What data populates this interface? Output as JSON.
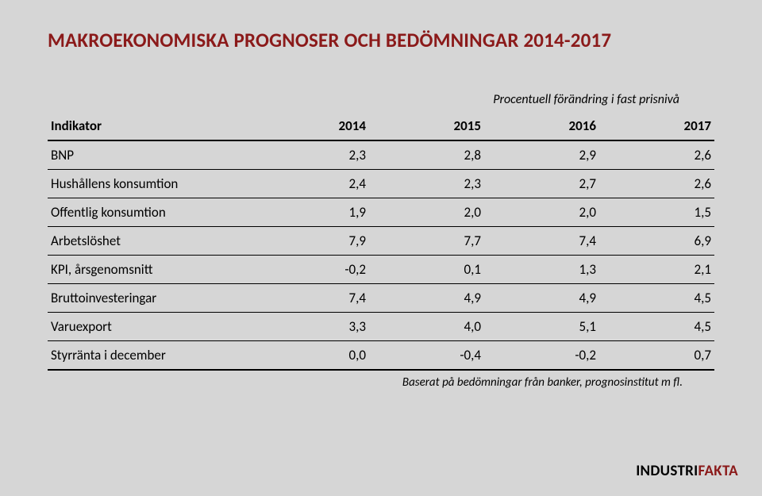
{
  "title": "MAKROEKONOMISKA PROGNOSER OCH BEDÖMNINGAR 2014-2017",
  "title_color": "#8b1a1a",
  "background_color": "#d6d6d6",
  "subtitle": "Procentuell förändring i fast prisnivå",
  "table": {
    "header_label": "Indikator",
    "years": [
      "2014",
      "2015",
      "2016",
      "2017"
    ],
    "rows": [
      {
        "label": "BNP",
        "vals": [
          "2,3",
          "2,8",
          "2,9",
          "2,6"
        ]
      },
      {
        "label": "Hushållens konsumtion",
        "vals": [
          "2,4",
          "2,3",
          "2,7",
          "2,6"
        ]
      },
      {
        "label": "Offentlig konsumtion",
        "vals": [
          "1,9",
          "2,0",
          "2,0",
          "1,5"
        ]
      },
      {
        "label": "Arbetslöshet",
        "vals": [
          "7,9",
          "7,7",
          "7,4",
          "6,9"
        ]
      },
      {
        "label": "KPI, årsgenomsnitt",
        "vals": [
          "-0,2",
          "0,1",
          "1,3",
          "2,1"
        ]
      },
      {
        "label": "Bruttoinvesteringar",
        "vals": [
          "7,4",
          "4,9",
          "4,9",
          "4,5"
        ]
      },
      {
        "label": "Varuexport",
        "vals": [
          "3,3",
          "4,0",
          "5,1",
          "4,5"
        ]
      },
      {
        "label": "Styrränta i december",
        "vals": [
          "0,0",
          "-0,4",
          "-0,2",
          "0,7"
        ]
      }
    ],
    "border_color": "#000000",
    "header_border_width": 2,
    "row_border_width": 1,
    "last_row_border_width": 2,
    "font_size": 17
  },
  "footnote": "Baserat på bedömningar från banker, prognosinstitut m fl.",
  "logo": {
    "part1": "INDUSTRI",
    "part2": "FAKTA",
    "part1_color": "#000000",
    "part2_color": "#8b1a1a"
  }
}
